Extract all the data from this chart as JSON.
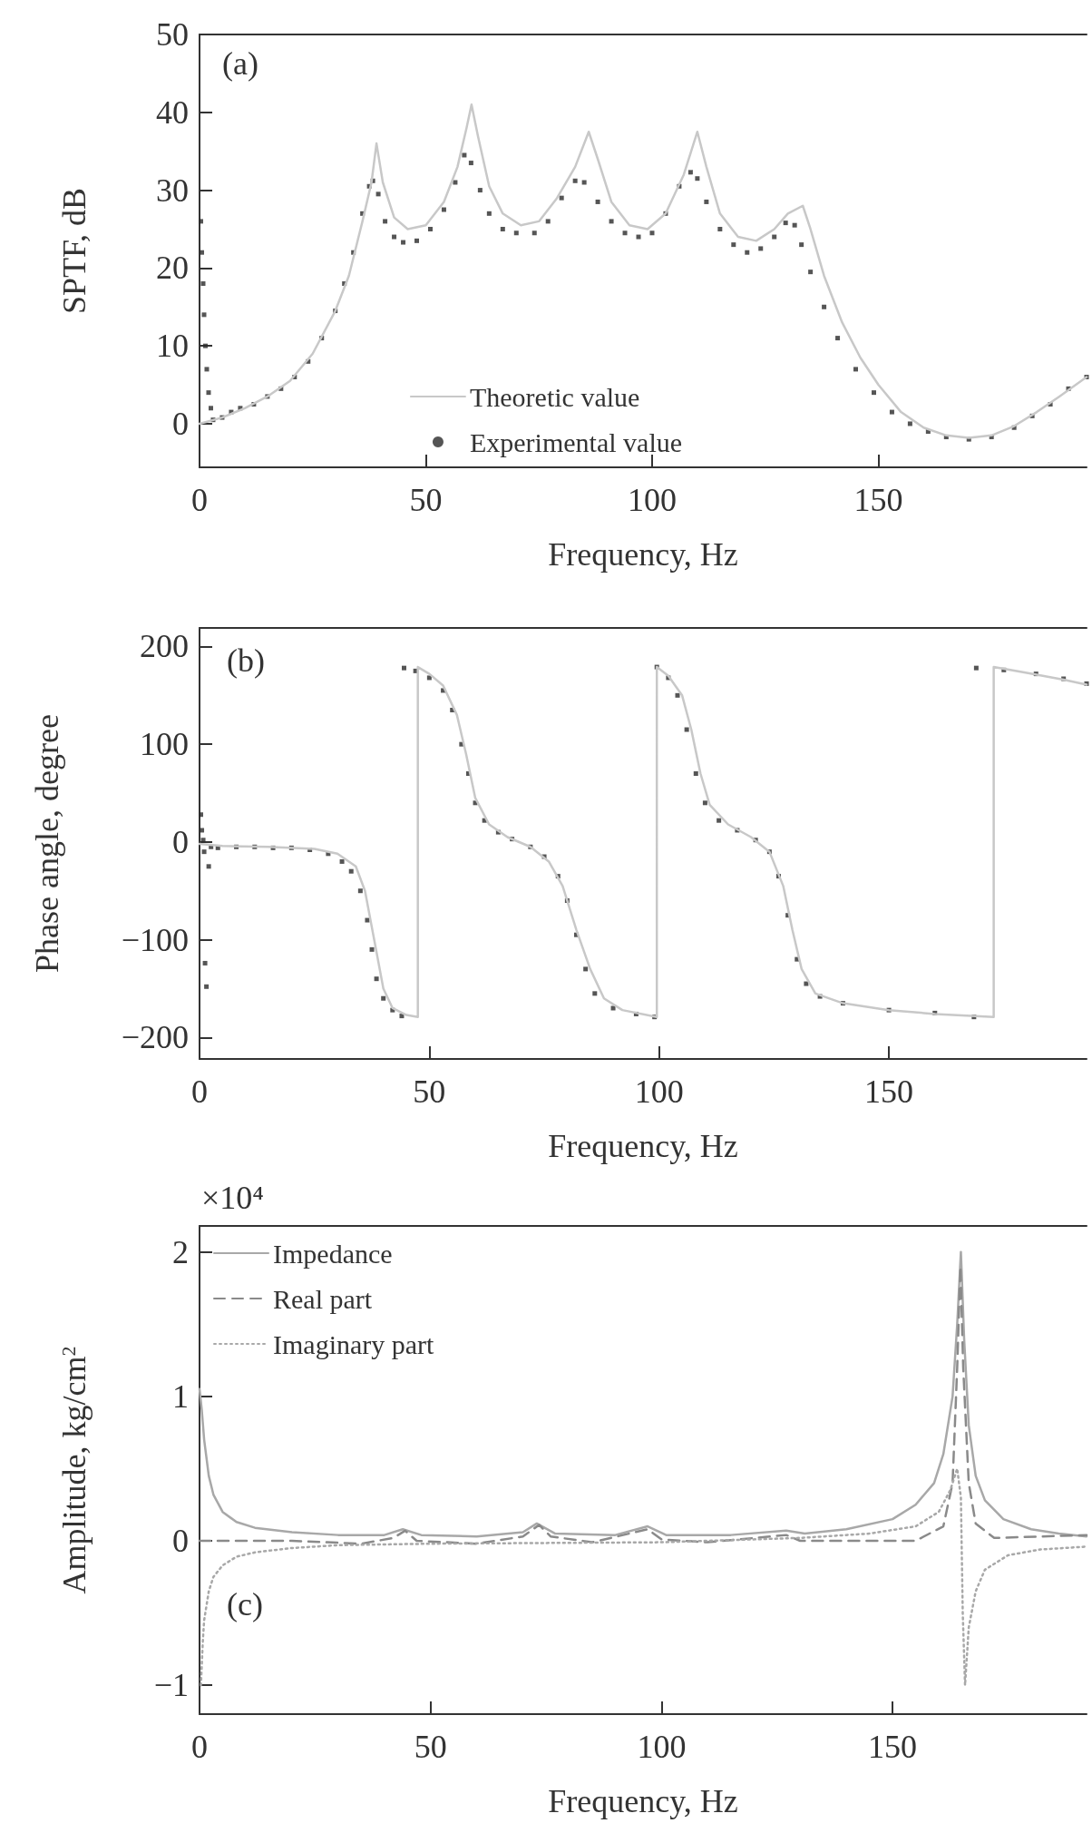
{
  "chart_data": [
    {
      "type": "line",
      "annotations": [
        "(a)"
      ],
      "xlabel": "Frequency, Hz",
      "ylabel": "SPTF, dB",
      "xlim": [
        0,
        196
      ],
      "xticks": [
        0,
        50,
        100,
        150
      ],
      "ylim": [
        -5.6,
        50
      ],
      "yticks": [
        0,
        10,
        20,
        30,
        40,
        50
      ],
      "grid": false,
      "legend": "bottom",
      "series": [
        {
          "name": "Theoretic value",
          "type": "line",
          "color": "#c8c8c8",
          "line_style": "solid",
          "x": [
            0,
            5,
            10,
            15,
            20,
            25,
            30,
            33,
            36,
            38,
            39.1,
            40.5,
            43,
            46,
            50,
            54,
            57,
            59,
            60.1,
            61.5,
            64,
            67,
            71,
            75,
            79,
            83,
            86,
            88,
            91,
            95,
            99,
            103,
            107,
            110,
            112,
            115,
            119,
            123,
            127,
            130,
            133.3,
            135,
            138,
            142,
            146,
            150,
            155,
            160,
            165,
            170,
            175,
            180,
            185,
            190,
            196
          ],
          "values": [
            0,
            0.8,
            2,
            3.5,
            5.5,
            9,
            14.5,
            19,
            26,
            31,
            36,
            31,
            26.5,
            25,
            25.5,
            28.5,
            33,
            38,
            41,
            37,
            30.5,
            27,
            25.5,
            26,
            29,
            33,
            37.5,
            34,
            28.5,
            25.5,
            25,
            27,
            32,
            37.5,
            33,
            27,
            24,
            23.5,
            25,
            27,
            28,
            25,
            19,
            13,
            8.5,
            5,
            1.5,
            -0.5,
            -1.5,
            -1.8,
            -1.5,
            -0.3,
            1.5,
            3.5,
            6
          ]
        },
        {
          "name": "Experimental value",
          "type": "scatter",
          "marker": "square",
          "color": "#2a2a2a",
          "x": [
            0.3,
            0.5,
            0.8,
            1,
            1.3,
            1.6,
            2,
            2.5,
            3,
            5,
            7,
            9,
            12,
            15,
            18,
            21,
            24,
            27,
            30,
            32,
            34,
            36,
            37.5,
            38.3,
            39.5,
            41,
            43,
            45,
            48,
            51,
            54,
            56.5,
            58.5,
            60,
            62,
            64,
            67,
            70,
            74,
            77,
            80,
            83,
            85,
            88,
            91,
            94,
            97,
            100,
            103,
            106,
            108.5,
            110,
            112,
            115,
            118,
            121,
            124,
            127,
            129.5,
            131.5,
            133,
            135,
            138,
            141,
            145,
            149,
            153,
            157,
            161,
            165,
            170,
            175,
            180,
            184,
            188,
            192,
            196
          ],
          "values": [
            26,
            22,
            18,
            14,
            10,
            7,
            4,
            2,
            0.5,
            0.8,
            1.5,
            2,
            2.5,
            3.5,
            4.5,
            6,
            8,
            11,
            14.5,
            18,
            22,
            27,
            30.5,
            31.2,
            29.5,
            26,
            24,
            23.3,
            23.5,
            25,
            27.5,
            31,
            34.5,
            33.5,
            30,
            27,
            25,
            24.5,
            24.5,
            26,
            29,
            31.2,
            31,
            28.5,
            26,
            24.5,
            24,
            24.5,
            27,
            30.5,
            32.3,
            31.5,
            28.5,
            25,
            23,
            22,
            22.5,
            24,
            25.8,
            25.5,
            23,
            19.5,
            15,
            11,
            7,
            4,
            1.5,
            0,
            -1,
            -1.7,
            -2,
            -1.7,
            -0.5,
            1,
            2.5,
            4.5,
            6
          ]
        }
      ]
    },
    {
      "type": "line",
      "annotations": [
        "(b)"
      ],
      "xlabel": "Frequency, Hz",
      "ylabel": "Phase angle, degree",
      "xlim": [
        0,
        193
      ],
      "xticks": [
        0,
        50,
        100,
        150
      ],
      "ylim": [
        -222,
        219
      ],
      "yticks": [
        {
          "value": -200,
          "label": "−200"
        },
        {
          "value": -100,
          "label": "−100"
        },
        0,
        100,
        200
      ],
      "grid": false,
      "series": [
        {
          "type": "line",
          "color": "#c8c8c8",
          "line_style": "solid",
          "x": [
            0,
            5,
            15,
            25,
            30,
            34,
            36,
            38,
            40,
            42,
            45,
            47.5,
            47.5,
            50,
            53,
            56,
            58,
            60,
            63,
            67,
            72,
            76,
            79,
            82,
            85,
            88,
            92,
            99.5,
            99.5,
            102,
            105,
            107,
            109,
            111,
            115,
            120,
            124,
            127,
            129,
            131,
            134,
            140,
            150,
            160,
            172.8,
            172.8,
            180,
            188,
            193
          ],
          "values": [
            -2,
            -4,
            -5,
            -7,
            -12,
            -25,
            -50,
            -100,
            -150,
            -170,
            -177,
            -179,
            179,
            172,
            160,
            130,
            90,
            45,
            18,
            5,
            -5,
            -20,
            -45,
            -90,
            -130,
            -160,
            -172,
            -179,
            179,
            170,
            150,
            115,
            70,
            38,
            18,
            5,
            -10,
            -45,
            -90,
            -130,
            -155,
            -165,
            -172,
            -176,
            -179,
            179,
            173,
            166,
            161
          ]
        },
        {
          "type": "scatter",
          "marker": "square",
          "color": "#2a2a2a",
          "x": [
            0.3,
            0.5,
            0.8,
            1,
            1.2,
            1.5,
            2,
            2.5,
            4,
            8,
            12,
            16,
            20,
            24,
            28,
            31,
            33,
            35,
            36.5,
            37.5,
            38.5,
            40,
            42,
            44,
            44.5,
            47,
            50,
            53,
            55,
            57,
            58.5,
            60,
            62,
            65,
            68,
            72,
            75,
            78,
            80,
            82,
            84,
            86,
            90,
            95,
            99,
            99.5,
            102,
            104,
            106,
            108,
            110,
            113,
            117,
            121,
            124,
            126,
            128,
            130,
            132,
            135,
            140,
            150,
            160,
            168.5,
            169,
            175,
            182,
            188,
            193
          ],
          "values": [
            28,
            12,
            2,
            -10,
            -124,
            -148,
            -25,
            -5,
            -6,
            -5,
            -5,
            -6,
            -6,
            -8,
            -12,
            -20,
            -30,
            -50,
            -80,
            -110,
            -140,
            -160,
            -172,
            -178,
            178,
            175,
            168,
            155,
            135,
            100,
            70,
            40,
            22,
            10,
            3,
            -5,
            -15,
            -35,
            -60,
            -95,
            -130,
            -155,
            -170,
            -176,
            -179,
            179,
            168,
            150,
            115,
            70,
            40,
            22,
            12,
            2,
            -10,
            -35,
            -75,
            -120,
            -145,
            -158,
            -165,
            -172,
            -175,
            -179,
            178,
            176,
            172,
            167,
            162
          ]
        }
      ]
    },
    {
      "type": "line",
      "annotations": [
        "×10⁴",
        "(c)"
      ],
      "xlabel": "Frequency, Hz",
      "ylabel": "Amplitude, kg/cm$^{2}$",
      "xlim": [
        0,
        192
      ],
      "xticks": [
        0,
        50,
        100,
        150
      ],
      "ylim": [
        -1.2,
        2.18
      ],
      "yticks": [
        {
          "value": -1,
          "label": "−1"
        },
        0,
        1,
        2
      ],
      "grid": false,
      "legend": "top left",
      "series": [
        {
          "name": "Impedance",
          "type": "line",
          "color": "#a8a8a8",
          "line_style": "solid",
          "x": [
            0,
            0.5,
            1,
            2,
            3,
            5,
            8,
            12,
            20,
            30,
            40,
            44,
            48,
            60,
            70,
            73,
            77,
            90,
            97,
            101,
            115,
            127,
            131,
            140,
            150,
            155,
            159,
            161,
            163,
            164,
            164.8,
            165.5,
            166.5,
            168,
            170,
            174,
            180,
            186,
            192
          ],
          "values": [
            1.05,
            0.9,
            0.7,
            0.45,
            0.32,
            0.2,
            0.13,
            0.09,
            0.06,
            0.04,
            0.04,
            0.08,
            0.04,
            0.03,
            0.06,
            0.12,
            0.05,
            0.04,
            0.1,
            0.04,
            0.04,
            0.07,
            0.05,
            0.08,
            0.15,
            0.25,
            0.4,
            0.6,
            1,
            1.5,
            2,
            1.4,
            0.8,
            0.45,
            0.28,
            0.15,
            0.08,
            0.05,
            0.03
          ]
        },
        {
          "name": "Real part",
          "type": "line",
          "color": "#8a8a8a",
          "line_style": "dashed",
          "x": [
            0,
            20,
            35,
            42,
            44.5,
            47,
            60,
            70,
            73.5,
            76,
            85,
            97,
            100,
            110,
            127,
            130,
            155,
            161,
            163,
            164,
            164.7,
            165.3,
            166.5,
            168,
            172,
            192
          ],
          "values": [
            0,
            0,
            -0.02,
            0.02,
            0.07,
            0,
            -0.02,
            0.03,
            0.11,
            0.03,
            -0.01,
            0.08,
            0.01,
            -0.01,
            0.04,
            0,
            0,
            0.1,
            0.4,
            1.2,
            1.9,
            1.2,
            0.4,
            0.12,
            0.02,
            0.04
          ]
        },
        {
          "name": "Imaginary part",
          "type": "line",
          "color": "#a8a8a8",
          "line_style": "dotted",
          "x": [
            0.3,
            0.7,
            1,
            2,
            3,
            5,
            8,
            12,
            20,
            30,
            50,
            100,
            130,
            145,
            155,
            160,
            162.5,
            164,
            164.8,
            165.2,
            165.7,
            166.5,
            168,
            170,
            175,
            182,
            192
          ],
          "values": [
            -1,
            -0.7,
            -0.55,
            -0.35,
            -0.25,
            -0.17,
            -0.11,
            -0.08,
            -0.05,
            -0.03,
            -0.02,
            -0.01,
            0.02,
            0.05,
            0.1,
            0.2,
            0.35,
            0.5,
            0.3,
            -0.5,
            -1,
            -0.6,
            -0.35,
            -0.2,
            -0.1,
            -0.06,
            -0.04
          ]
        }
      ]
    }
  ]
}
